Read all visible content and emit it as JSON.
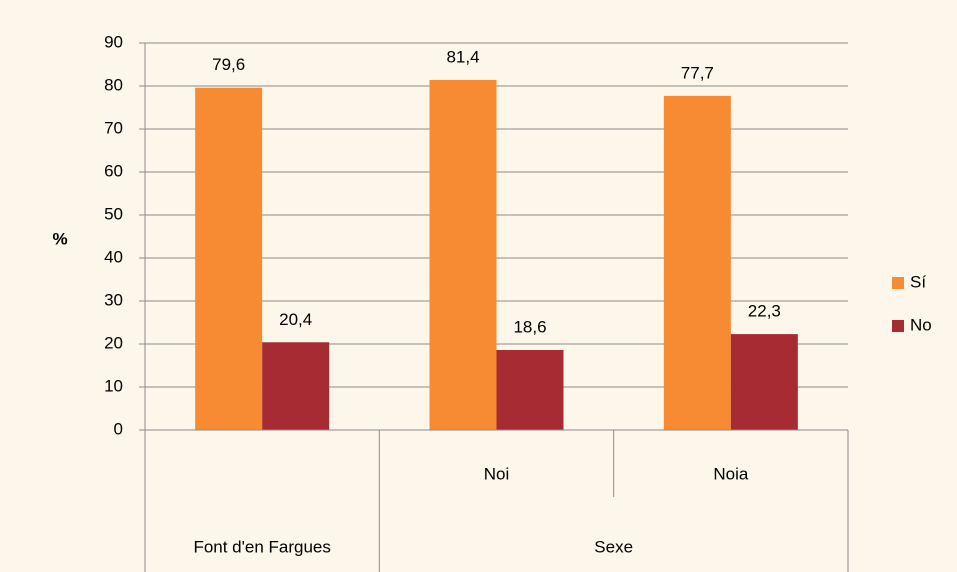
{
  "chart_data": {
    "type": "bar",
    "y_label": "%",
    "categories": [
      null,
      "Noi",
      "Noia"
    ],
    "category_groups": [
      {
        "label": "Font d'en Fargues",
        "size": 1
      },
      {
        "label": "Sexe",
        "size": 2
      }
    ],
    "series": [
      {
        "name": "Sí",
        "color": "#f68b33",
        "values": [
          79.6,
          81.4,
          77.7
        ],
        "value_labels": [
          "79,6",
          "81,4",
          "77,7"
        ]
      },
      {
        "name": "No",
        "color": "#a62b33",
        "values": [
          20.4,
          18.6,
          22.3
        ],
        "value_labels": [
          "20,4",
          "18,6",
          "22,3"
        ]
      }
    ],
    "ylim": [
      0,
      90
    ],
    "yticks": [
      0,
      10,
      20,
      30,
      40,
      50,
      60,
      70,
      80,
      90
    ],
    "grid": true,
    "legend": "right"
  }
}
